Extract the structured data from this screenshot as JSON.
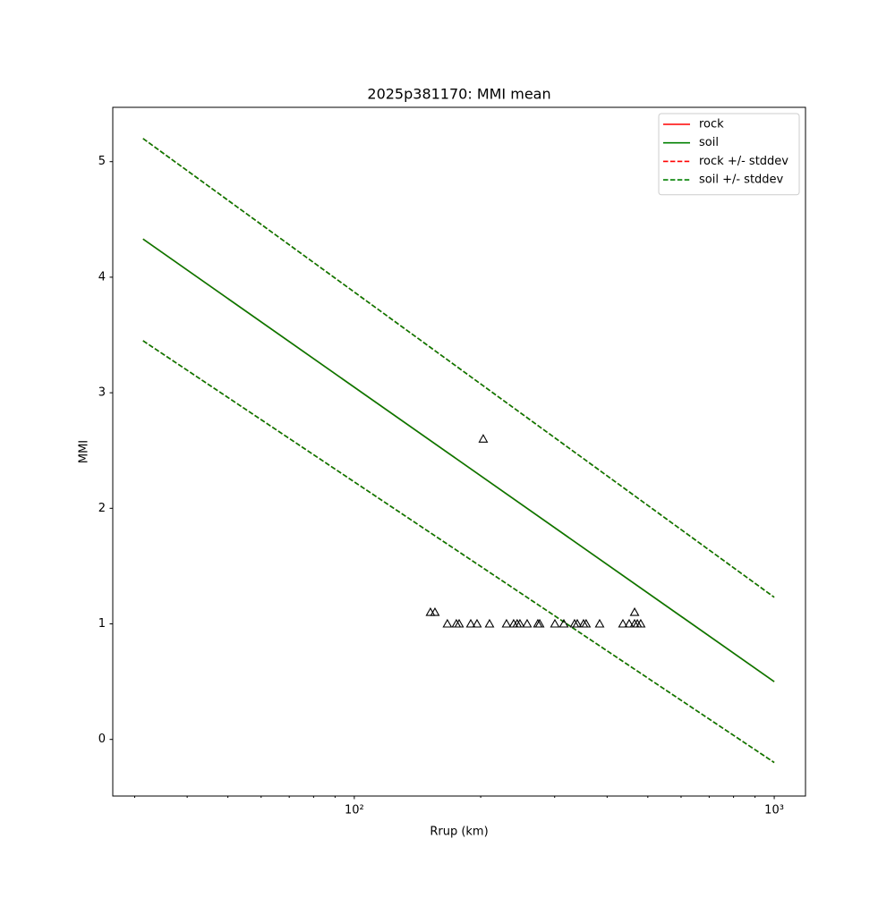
{
  "chart_data": {
    "type": "line",
    "title": "2025p381170: MMI mean",
    "xlabel": "Rrup (km)",
    "ylabel": "MMI",
    "xscale": "log",
    "xlim": [
      26.6,
      1187
    ],
    "ylim": [
      -0.49,
      5.47
    ],
    "xticks": [
      {
        "value": 100,
        "label": "10²"
      },
      {
        "value": 1000,
        "label": "10³"
      }
    ],
    "xminorticks": [
      30,
      40,
      50,
      60,
      70,
      80,
      90,
      200,
      300,
      400,
      500,
      600,
      700,
      800,
      900
    ],
    "yticks": [
      0,
      1,
      2,
      3,
      4,
      5
    ],
    "legend": "upper right",
    "x": [
      31.4,
      1000
    ],
    "series": [
      {
        "name": "rock",
        "color": "#ff0000",
        "linestyle": "solid",
        "values": [
          4.33,
          0.5
        ]
      },
      {
        "name": "soil",
        "color": "#008000",
        "linestyle": "solid",
        "values": [
          4.33,
          0.5
        ]
      },
      {
        "name": "rock +/- stddev",
        "color": "#ff0000",
        "linestyle": "dashed",
        "upper": [
          5.2,
          1.23
        ],
        "lower": [
          3.45,
          -0.2
        ]
      },
      {
        "name": "soil +/- stddev",
        "color": "#008000",
        "linestyle": "dashed",
        "upper": [
          5.2,
          1.23
        ],
        "lower": [
          3.45,
          -0.2
        ]
      }
    ],
    "stations": {
      "marker": "triangle",
      "color": "#000000",
      "x": [
        151.8,
        155.6,
        166.6,
        175,
        177.7,
        189.4,
        196,
        202.8,
        209.9,
        230.4,
        239.6,
        244.3,
        248,
        258,
        273.6,
        276.4,
        300.4,
        315.5,
        334.6,
        339.6,
        351.5,
        356.5,
        383.9,
        436.2,
        451.4,
        465,
        465,
        472,
        481
      ],
      "values": [
        1.1,
        1.1,
        1,
        1,
        1,
        1,
        1,
        2.6,
        1,
        1,
        1,
        1,
        1,
        1,
        1,
        1,
        1,
        1,
        1,
        1,
        1,
        1,
        1,
        1,
        1,
        1.1,
        1,
        1,
        1
      ]
    }
  }
}
